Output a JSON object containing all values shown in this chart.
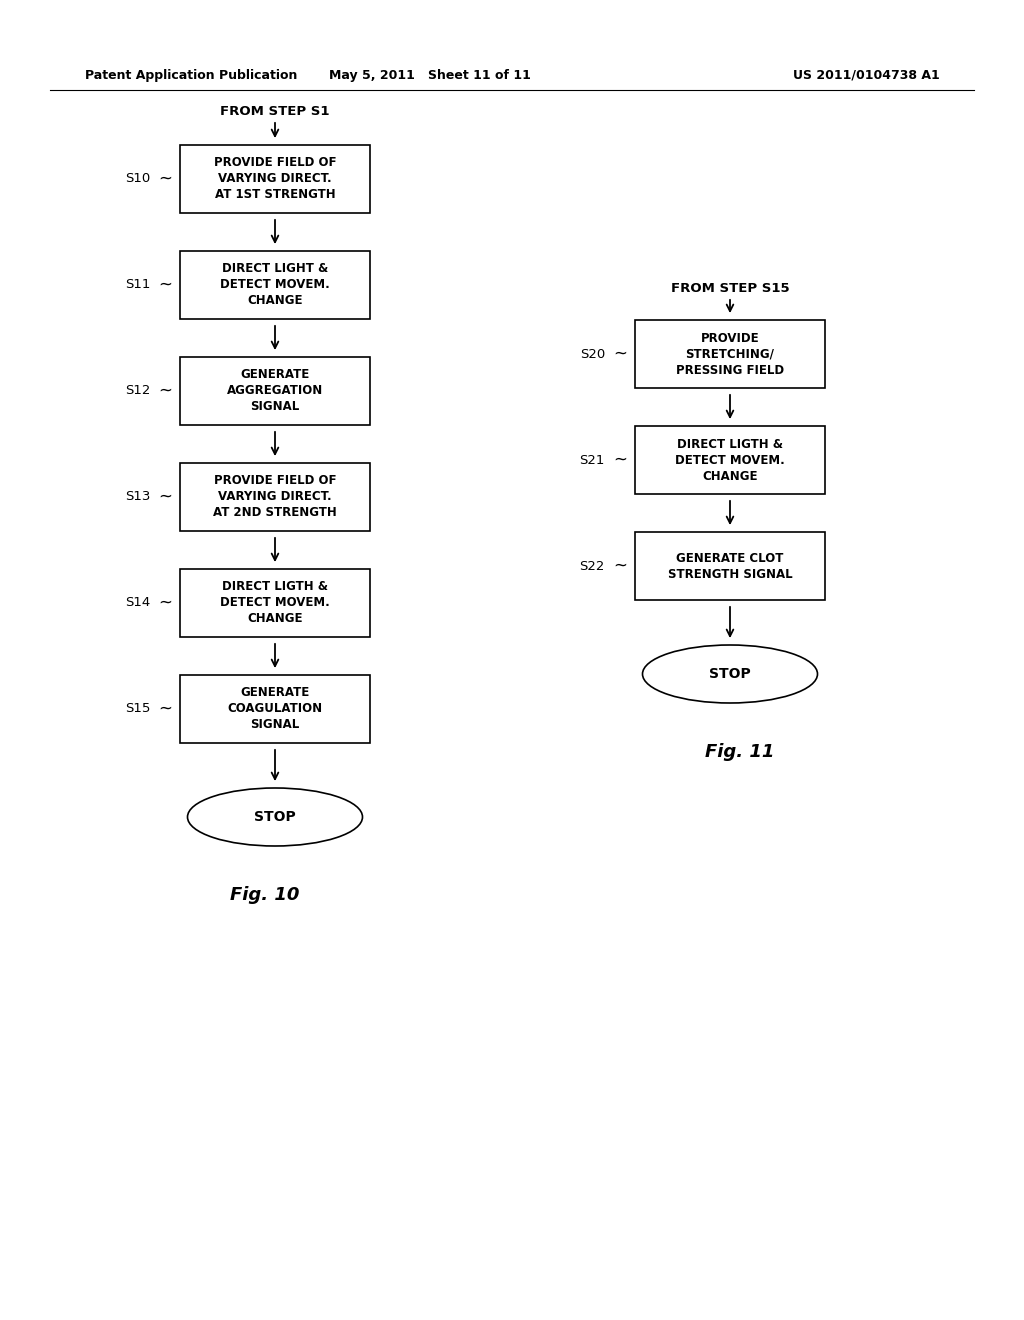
{
  "header_left": "Patent Application Publication",
  "header_mid": "May 5, 2011   Sheet 11 of 11",
  "header_right": "US 2011/0104738 A1",
  "fig10_from": "FROM STEP S1",
  "fig10_boxes": [
    {
      "label": "S10",
      "text": "PROVIDE FIELD OF\nVARYING DIRECT.\nAT 1ST STRENGTH"
    },
    {
      "label": "S11",
      "text": "DIRECT LIGHT &\nDETECT MOVEM.\nCHANGE"
    },
    {
      "label": "S12",
      "text": "GENERATE\nAGGREGATION\nSIGNAL"
    },
    {
      "label": "S13",
      "text": "PROVIDE FIELD OF\nVARYING DIRECT.\nAT 2ND STRENGTH"
    },
    {
      "label": "S14",
      "text": "DIRECT LIGTH &\nDETECT MOVEM.\nCHANGE"
    },
    {
      "label": "S15",
      "text": "GENERATE\nCOAGULATION\nSIGNAL"
    }
  ],
  "fig10_stop": "STOP",
  "fig10_label": "Fig. 10",
  "fig11_from": "FROM STEP S15",
  "fig11_boxes": [
    {
      "label": "S20",
      "text": "PROVIDE\nSTRETCHING/\nPRESSING FIELD"
    },
    {
      "label": "S21",
      "text": "DIRECT LIGTH &\nDETECT MOVEM.\nCHANGE"
    },
    {
      "label": "S22",
      "text": "GENERATE CLOT\nSTRENGTH SIGNAL"
    }
  ],
  "fig11_stop": "STOP",
  "fig11_label": "Fig. 11",
  "bg_color": "#ffffff",
  "text_color": "#000000"
}
